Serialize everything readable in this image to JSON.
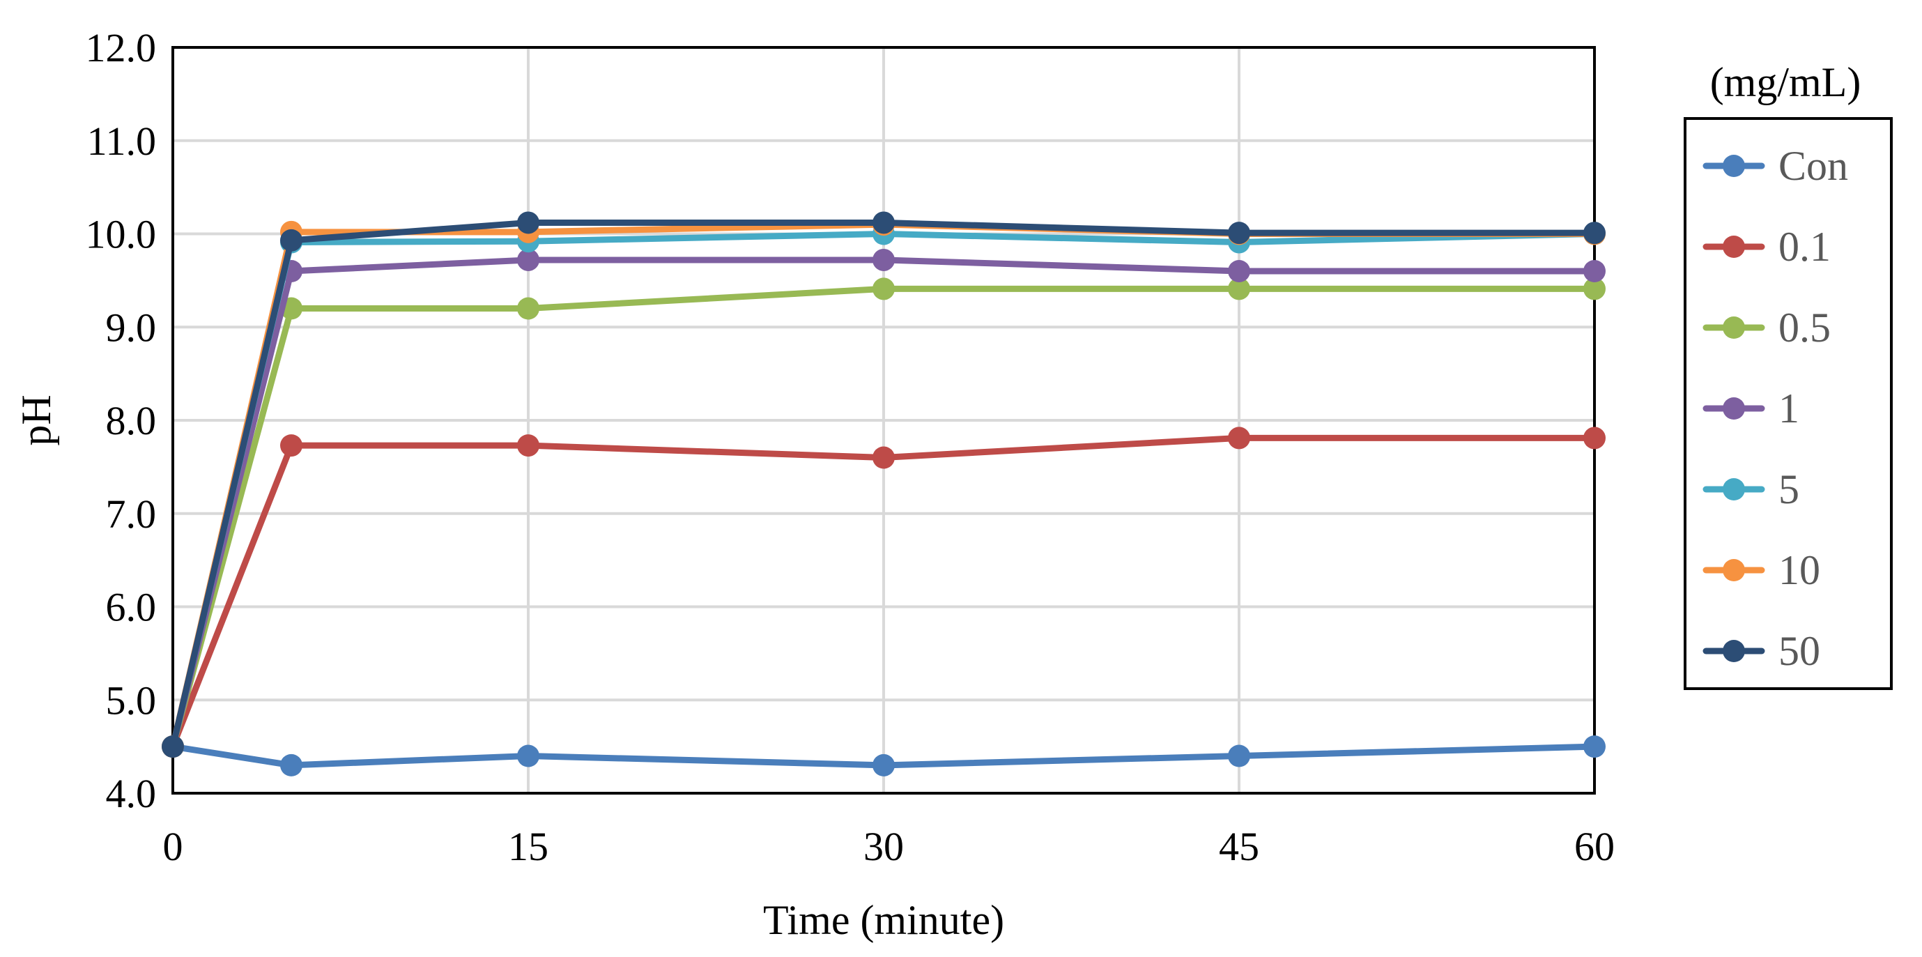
{
  "chart_data": {
    "type": "line",
    "xlabel": "Time (minute)",
    "ylabel": "pH",
    "xlim": [
      0,
      60
    ],
    "ylim": [
      4.0,
      12.0
    ],
    "x_ticks": [
      "0",
      "15",
      "30",
      "45",
      "60"
    ],
    "x_tick_values": [
      0,
      15,
      30,
      45,
      60
    ],
    "y_ticks": [
      "4.0",
      "5.0",
      "6.0",
      "7.0",
      "8.0",
      "9.0",
      "10.0",
      "11.0",
      "12.0"
    ],
    "y_tick_values": [
      4,
      5,
      6,
      7,
      8,
      9,
      10,
      11,
      12
    ],
    "grid": true,
    "legend_title": "(mg/mL)",
    "legend_position": "right",
    "x": [
      0,
      5,
      15,
      30,
      45,
      60
    ],
    "series": [
      {
        "name": "Con",
        "color": "#4a7ebb",
        "values": [
          4.5,
          4.3,
          4.4,
          4.3,
          4.4,
          4.5
        ]
      },
      {
        "name": "0.1",
        "color": "#be4b48",
        "values": [
          4.5,
          7.73,
          7.73,
          7.6,
          7.81,
          7.81
        ]
      },
      {
        "name": "0.5",
        "color": "#98b954",
        "values": [
          4.5,
          9.2,
          9.2,
          9.41,
          9.41,
          9.41
        ]
      },
      {
        "name": "1",
        "color": "#7d5fa0",
        "values": [
          4.5,
          9.6,
          9.72,
          9.72,
          9.6,
          9.6
        ]
      },
      {
        "name": "5",
        "color": "#46aac5",
        "values": [
          4.5,
          9.91,
          9.92,
          10.0,
          9.91,
          10.0
        ]
      },
      {
        "name": "10",
        "color": "#f69240",
        "values": [
          4.5,
          10.02,
          10.02,
          10.1,
          10.0,
          10.0
        ]
      },
      {
        "name": "50",
        "color": "#2c4d75",
        "values": [
          4.5,
          9.93,
          10.12,
          10.12,
          10.01,
          10.01
        ]
      }
    ]
  }
}
